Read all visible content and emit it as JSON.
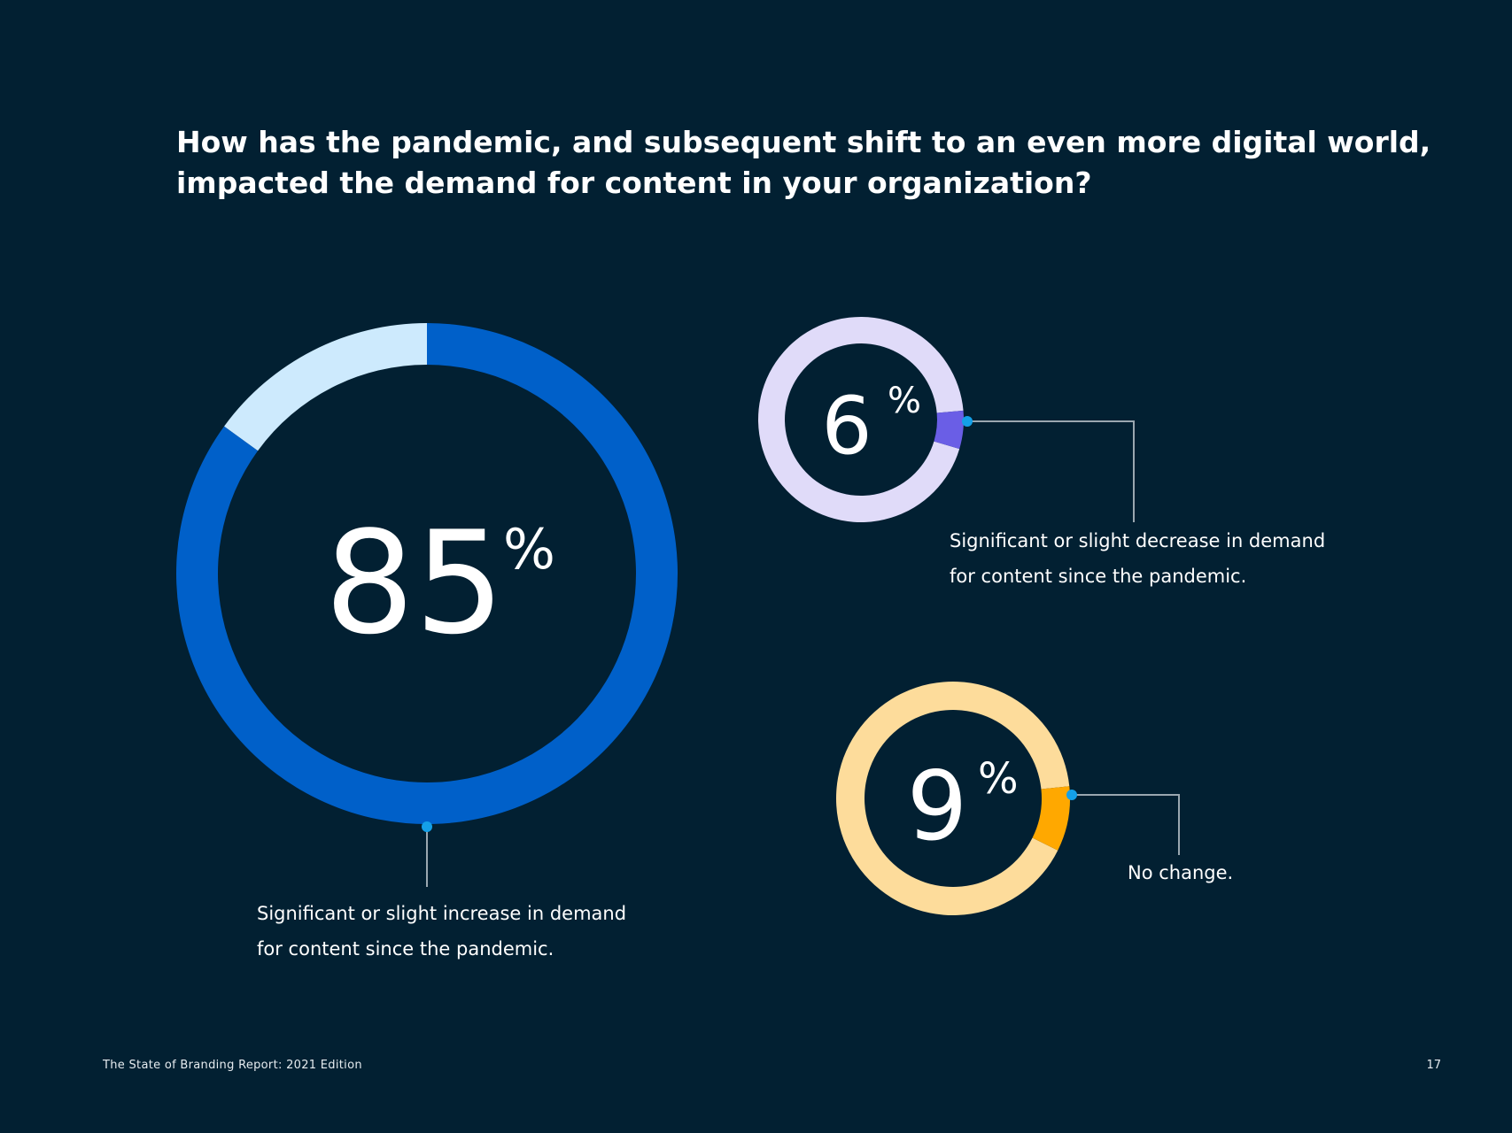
{
  "title_lines": [
    "How has the pandemic, and subsequent shift to an even more digital world,",
    "impacted the demand for content in your organization?"
  ],
  "chart_data": [
    {
      "type": "pie",
      "title": "",
      "value": 85,
      "unit": "%",
      "value_label": "85",
      "percent_sign": "%",
      "caption_lines": [
        "Significant or slight increase in demand",
        "for content since the pandemic."
      ],
      "colors": {
        "main": "#0060c9",
        "remainder": "#cdeafd"
      }
    },
    {
      "type": "pie",
      "title": "",
      "value": 6,
      "unit": "%",
      "value_label": "6",
      "percent_sign": "%",
      "caption_lines": [
        "Significant or slight decrease in demand",
        "for content since the pandemic."
      ],
      "colors": {
        "main": "#6a5ee6",
        "remainder": "#e0dbf9"
      }
    },
    {
      "type": "pie",
      "title": "",
      "value": 9,
      "unit": "%",
      "value_label": "9",
      "percent_sign": "%",
      "caption_lines": [
        "No change."
      ],
      "colors": {
        "main": "#ffa800",
        "remainder": "#fddc9b"
      }
    }
  ],
  "connector_colors": {
    "line": "#9aa7b0",
    "dot": "#14a0e8"
  },
  "footer": {
    "report_name": "The State of Branding Report: 2021 Edition",
    "page_number": "17"
  }
}
